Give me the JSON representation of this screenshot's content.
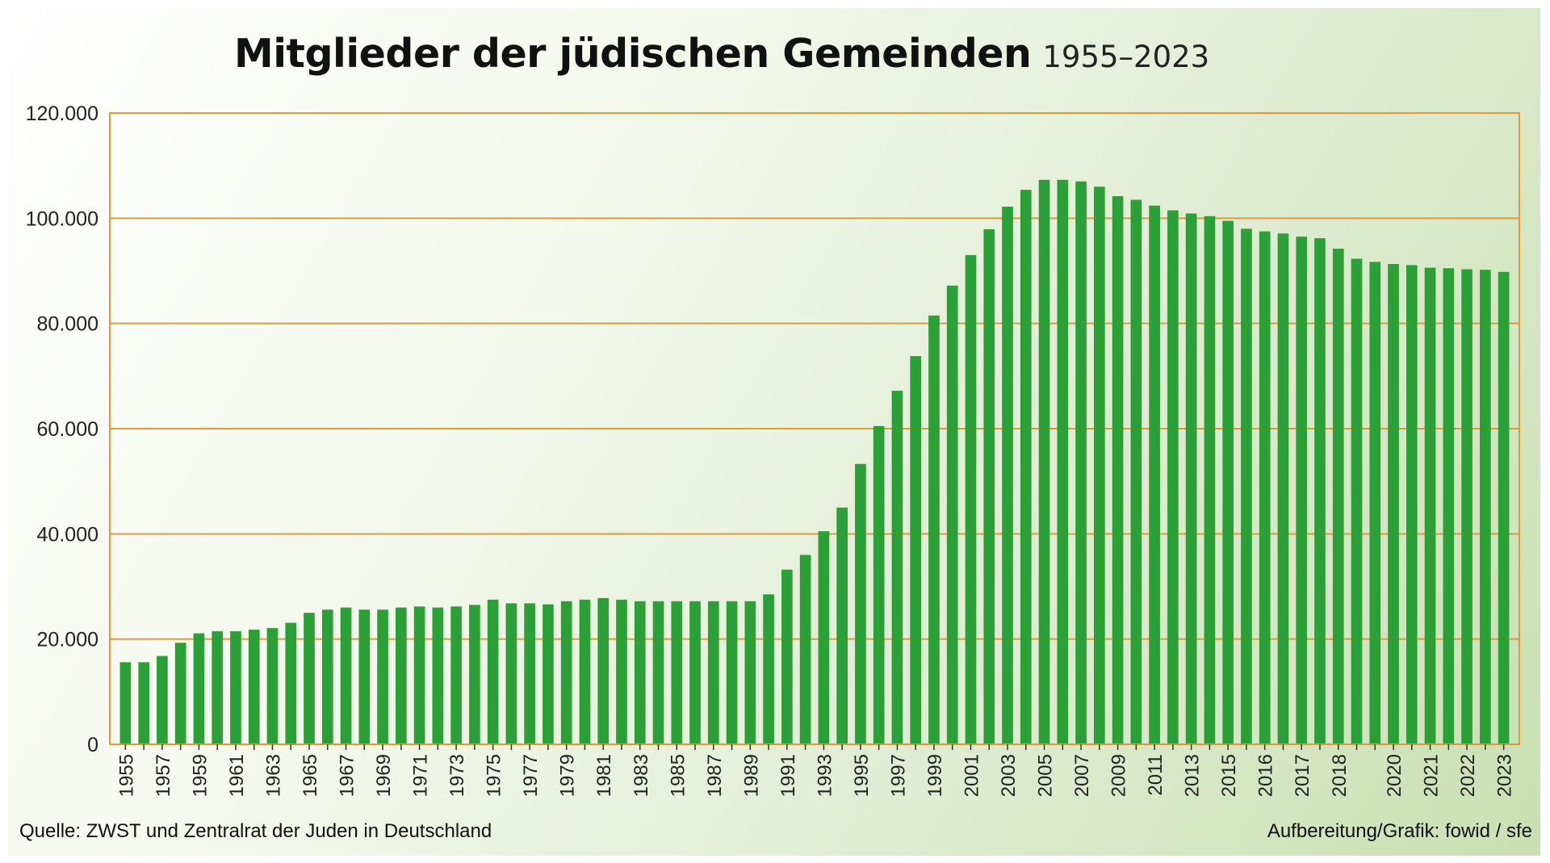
{
  "colors": {
    "bar": "#2aa037",
    "grid": "#e09a3a",
    "background_start": "#ffffff",
    "background_end": "#c9e0b3"
  },
  "source": "Quelle: ZWST und Zentralrat der Juden in Deutschland",
  "credit": "Aufbereitung/Grafik: fowid / sfe",
  "chart_data": {
    "type": "bar",
    "title": "Mitglieder der jüdischen Gemeinden",
    "subtitle": "1955–2023",
    "ylim": [
      0,
      120000
    ],
    "yticks": [
      0,
      20000,
      40000,
      60000,
      80000,
      100000,
      120000
    ],
    "ytick_labels": [
      "0",
      "20.000",
      "40.000",
      "60.000",
      "80.000",
      "100.000",
      "120.000"
    ],
    "grid": true,
    "categories": [
      "1955",
      "1956",
      "1957",
      "1958",
      "1959",
      "1960",
      "1961",
      "1962",
      "1963",
      "1964",
      "1965",
      "1966",
      "1967",
      "1968",
      "1969",
      "1970",
      "1971",
      "1972",
      "1973",
      "1974",
      "1975",
      "1976",
      "1977",
      "1978",
      "1979",
      "1980",
      "1981",
      "1982",
      "1983",
      "1984",
      "1985",
      "1986",
      "1987",
      "1988",
      "1989",
      "1990",
      "1991",
      "1992",
      "1993",
      "1994",
      "1995",
      "1996",
      "1997",
      "1998",
      "1999",
      "2000",
      "2001",
      "2002",
      "2003",
      "2004",
      "2005",
      "2006",
      "2007",
      "2008",
      "2009",
      "2010",
      "2011",
      "2012",
      "2013",
      "2014",
      "2015",
      "2015b",
      "2016",
      "2016b",
      "2017",
      "2017b",
      "2018",
      "2018b",
      "2019",
      "2020",
      "2020b",
      "2021",
      "2021b",
      "2022",
      "2022b",
      "2023"
    ],
    "tick_labels": [
      "1955",
      "",
      "1957",
      "",
      "1959",
      "",
      "1961",
      "",
      "1963",
      "",
      "1965",
      "",
      "1967",
      "",
      "1969",
      "",
      "1971",
      "",
      "1973",
      "",
      "1975",
      "",
      "1977",
      "",
      "1979",
      "",
      "1981",
      "",
      "1983",
      "",
      "1985",
      "",
      "1987",
      "",
      "1989",
      "",
      "1991",
      "",
      "1993",
      "",
      "1995",
      "",
      "1997",
      "",
      "1999",
      "",
      "2001",
      "",
      "2003",
      "",
      "2005",
      "",
      "2007",
      "",
      "2009",
      "",
      "2011",
      "",
      "2013",
      "",
      "2015",
      "",
      "2016",
      "",
      "2017",
      "",
      "2018",
      "",
      "",
      "2020",
      "",
      "2021",
      "",
      "2022",
      "",
      "2023"
    ],
    "values": [
      15600,
      15600,
      16800,
      19300,
      21100,
      21500,
      21500,
      21800,
      22100,
      23100,
      25000,
      25600,
      26000,
      25600,
      25600,
      26000,
      26200,
      26000,
      26200,
      26500,
      27500,
      26800,
      26800,
      26600,
      27200,
      27500,
      27800,
      27500,
      27200,
      27200,
      27200,
      27200,
      27200,
      27200,
      27200,
      28500,
      33200,
      36000,
      40500,
      45000,
      53300,
      60500,
      67200,
      73800,
      81500,
      87200,
      93000,
      97900,
      102200,
      105400,
      107300,
      107300,
      107000,
      106000,
      104200,
      103500,
      102400,
      101500,
      100900,
      100400,
      99500,
      98000,
      97500,
      97100,
      96500,
      96200,
      94200,
      92300,
      91700,
      91300,
      91100,
      90600,
      90500,
      90300,
      90200,
      89800
    ]
  }
}
